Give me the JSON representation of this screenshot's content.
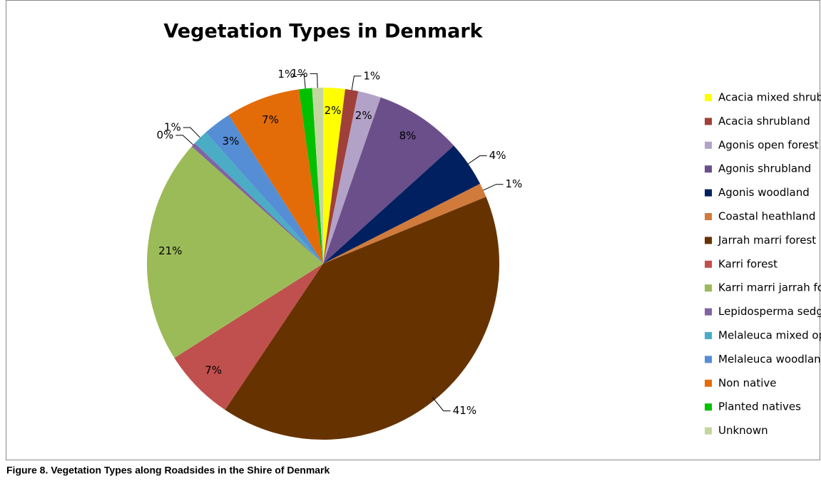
{
  "chart_data": {
    "type": "pie",
    "title": "Vegetation Types in Denmark",
    "caption": "Figure 8. Vegetation Types along Roadsides in the Shire of Denmark",
    "categories": [
      "Acacia mixed shrubland",
      "Acacia shrubland",
      "Agonis open forest",
      "Agonis shrubland",
      "Agonis woodland",
      "Coastal heathland",
      "Jarrah marri forest",
      "Karri forest",
      "Karri marri jarrah forest",
      "Lepidosperma sedgeland",
      "Melaleuca mixed open forest",
      "Melaleuca woodland",
      "Non native",
      "Planted natives",
      "Unknown"
    ],
    "values": [
      2.0,
      1.2,
      2.1,
      8.0,
      4.2,
      1.3,
      40.6,
      6.6,
      20.6,
      0.4,
      1.4,
      2.6,
      6.8,
      1.2,
      1.0
    ],
    "value_labels": [
      "2%",
      "1%",
      "2%",
      "8%",
      "4%",
      "1%",
      "41%",
      "7%",
      "21%",
      "0%",
      "1%",
      "3%",
      "7%",
      "1%",
      "1%"
    ],
    "colors": [
      "#ffff00",
      "#a0403a",
      "#b3a2c7",
      "#6b4f8a",
      "#002060",
      "#d07b3c",
      "#663300",
      "#c0504d",
      "#9bbb59",
      "#8064a2",
      "#4bacc6",
      "#558ed5",
      "#e36c09",
      "#00c000",
      "#c4d6a0"
    ],
    "legend": "right"
  }
}
